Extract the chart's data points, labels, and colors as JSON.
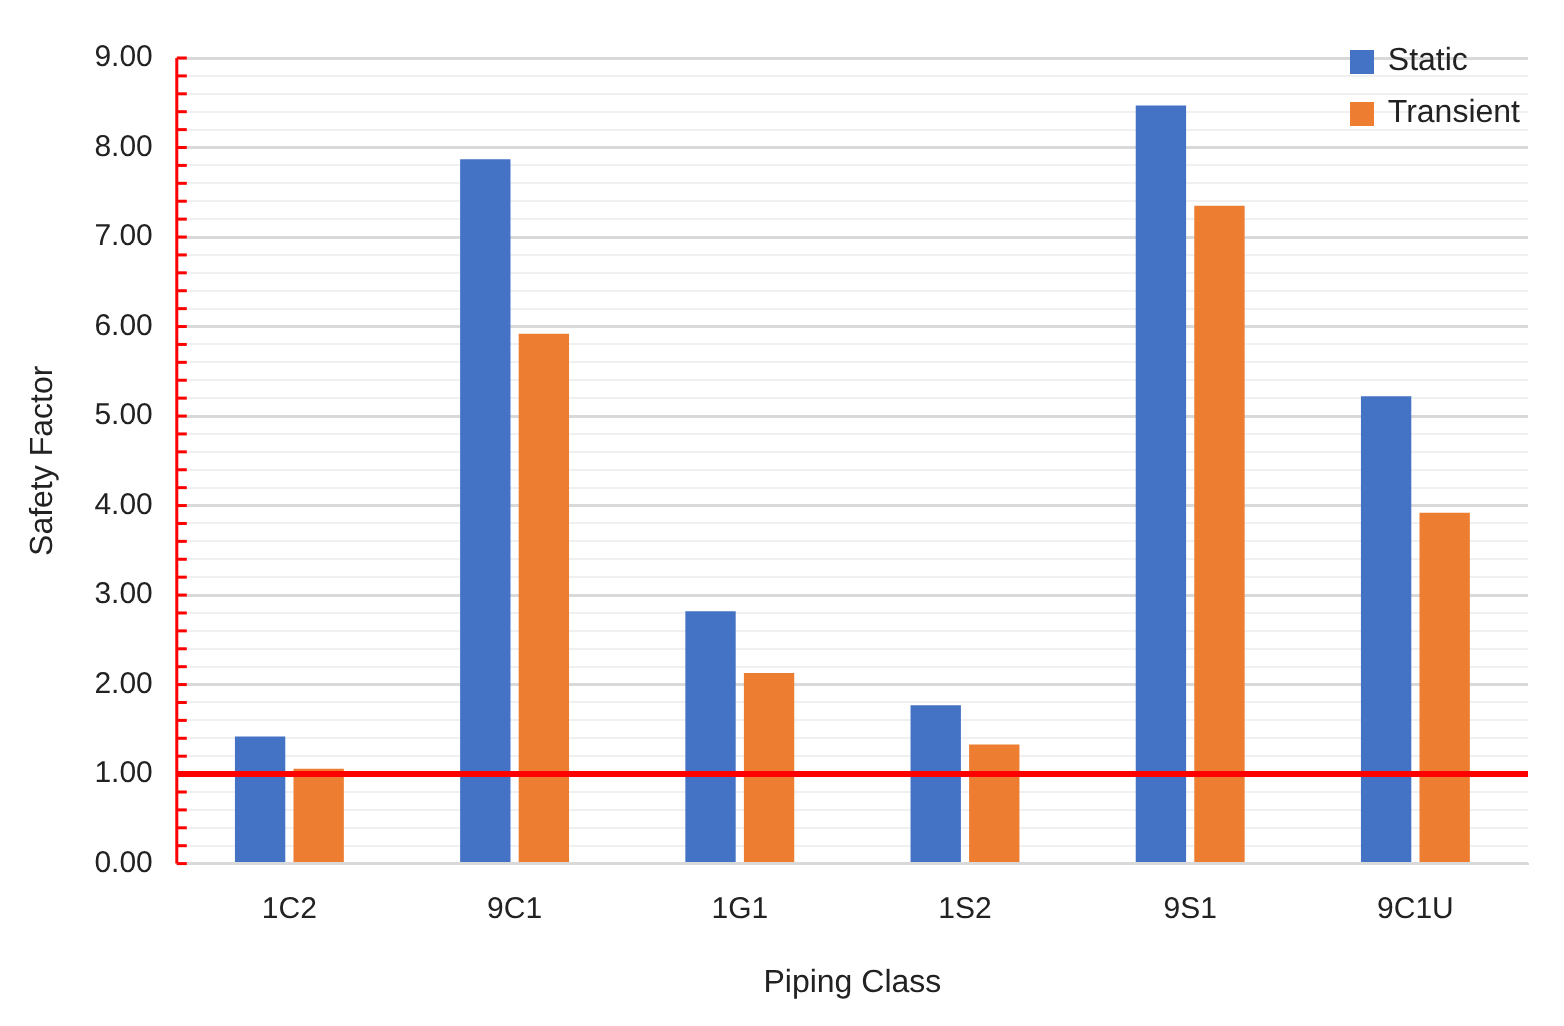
{
  "chart_data": {
    "type": "bar",
    "xlabel": "Piping Class",
    "ylabel": "Safety Factor",
    "categories": [
      "1C2",
      "9C1",
      "1G1",
      "1S2",
      "9S1",
      "9C1U"
    ],
    "series": [
      {
        "name": "Static",
        "color": "#4472c4",
        "values": [
          1.42,
          7.87,
          2.82,
          1.77,
          8.47,
          5.22
        ]
      },
      {
        "name": "Transient",
        "color": "#ed7d31",
        "values": [
          1.06,
          5.92,
          2.13,
          1.33,
          7.35,
          3.92
        ]
      }
    ],
    "ylim": [
      0,
      9
    ],
    "yticks": [
      {
        "value": 0,
        "label": "0.00"
      },
      {
        "value": 0.2,
        "label": null
      },
      {
        "value": 0.4,
        "label": null
      },
      {
        "value": 0.6,
        "label": null
      },
      {
        "value": 0.8,
        "label": null
      },
      {
        "value": 1,
        "label": "1.00"
      },
      {
        "value": 1.2,
        "label": null
      },
      {
        "value": 1.4,
        "label": null
      },
      {
        "value": 1.6,
        "label": null
      },
      {
        "value": 1.8,
        "label": null
      },
      {
        "value": 2,
        "label": "2.00"
      },
      {
        "value": 2.2,
        "label": null
      },
      {
        "value": 2.4,
        "label": null
      },
      {
        "value": 2.6,
        "label": null
      },
      {
        "value": 2.8,
        "label": null
      },
      {
        "value": 3,
        "label": "3.00"
      },
      {
        "value": 3.2,
        "label": null
      },
      {
        "value": 3.4,
        "label": null
      },
      {
        "value": 3.6,
        "label": null
      },
      {
        "value": 3.8,
        "label": null
      },
      {
        "value": 4,
        "label": "4.00"
      },
      {
        "value": 4.2,
        "label": null
      },
      {
        "value": 4.4,
        "label": null
      },
      {
        "value": 4.6,
        "label": null
      },
      {
        "value": 4.8,
        "label": null
      },
      {
        "value": 5,
        "label": "5.00"
      },
      {
        "value": 5.2,
        "label": null
      },
      {
        "value": 5.4,
        "label": null
      },
      {
        "value": 5.6,
        "label": null
      },
      {
        "value": 5.8,
        "label": null
      },
      {
        "value": 6,
        "label": "6.00"
      },
      {
        "value": 6.2,
        "label": null
      },
      {
        "value": 6.4,
        "label": null
      },
      {
        "value": 6.6,
        "label": null
      },
      {
        "value": 6.8,
        "label": null
      },
      {
        "value": 7,
        "label": "7.00"
      },
      {
        "value": 7.2,
        "label": null
      },
      {
        "value": 7.4,
        "label": null
      },
      {
        "value": 7.6,
        "label": null
      },
      {
        "value": 7.8,
        "label": null
      },
      {
        "value": 8,
        "label": "8.00"
      },
      {
        "value": 8.2,
        "label": null
      },
      {
        "value": 8.4,
        "label": null
      },
      {
        "value": 8.6,
        "label": null
      },
      {
        "value": 8.8,
        "label": null
      },
      {
        "value": 9,
        "label": "9.00"
      }
    ],
    "ref_lines": [
      {
        "axis": "y",
        "value": 1,
        "color": "#ff0000"
      }
    ],
    "grid": "y",
    "legend": "top right"
  }
}
